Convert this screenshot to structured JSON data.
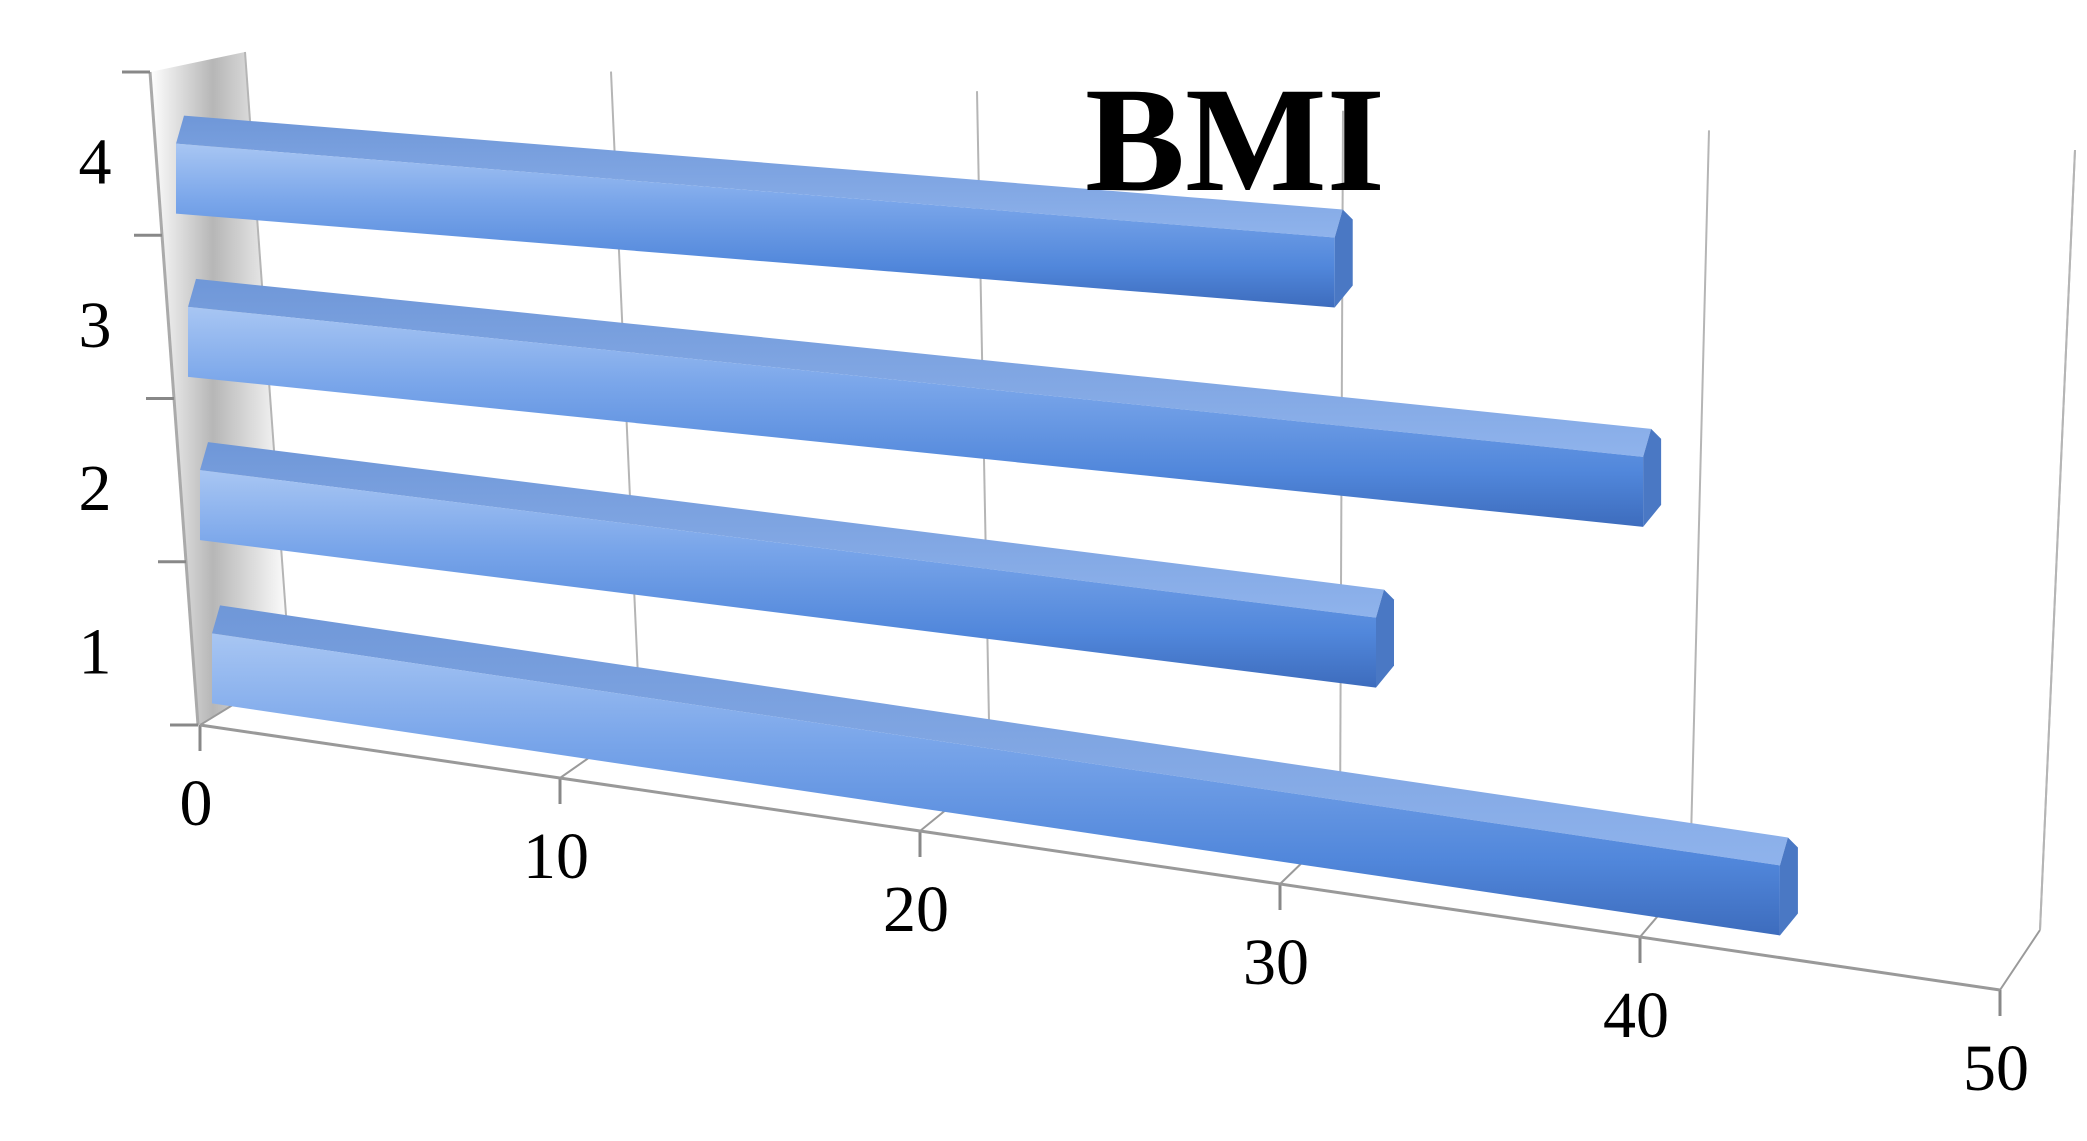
{
  "chart_data": {
    "type": "bar",
    "orientation": "horizontal",
    "style": "3d-perspective",
    "title": "BMI",
    "xlabel": "",
    "ylabel": "",
    "categories": [
      "1",
      "2",
      "3",
      "4"
    ],
    "values": [
      47,
      35,
      43,
      34
    ],
    "xlim": [
      0,
      50
    ],
    "x_ticks": [
      "0",
      "10",
      "20",
      "30",
      "40",
      "50"
    ],
    "grid": true,
    "legend": "none",
    "colors": {
      "bar_top": "#8fb4ee",
      "bar_face": "#5b8fe0",
      "bar_bottom": "#3f6fbd",
      "bar_end": "#4a78c4",
      "grid": "#b5b5b5",
      "wall_shadow": "#9a9a9a"
    }
  }
}
